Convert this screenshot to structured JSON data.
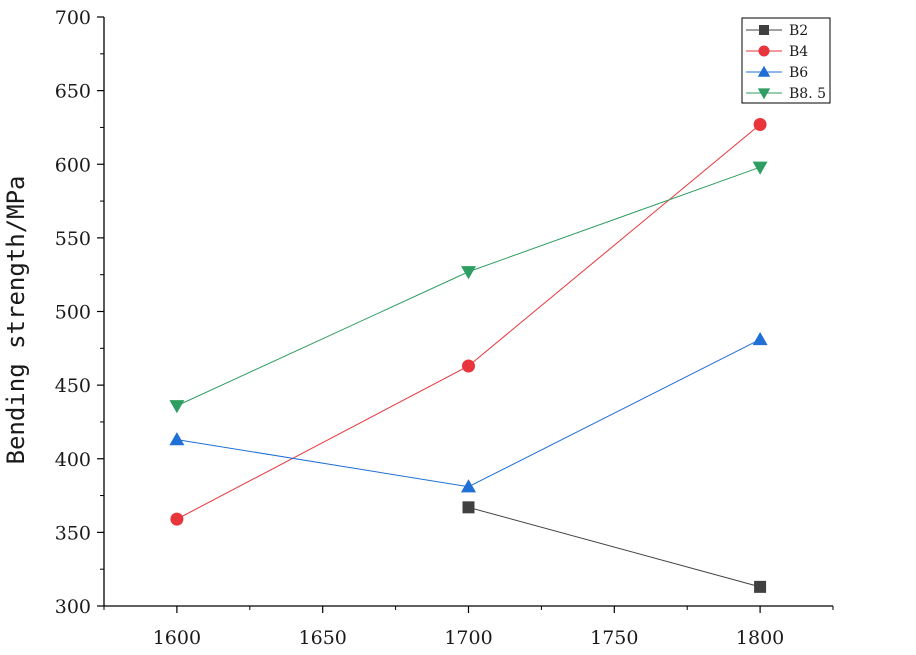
{
  "chart_data": {
    "type": "line",
    "title": "",
    "xlabel": "",
    "ylabel": "Bending strength/MPa",
    "xlim": [
      1575,
      1825
    ],
    "ylim": [
      300,
      700
    ],
    "xticks": [
      1600,
      1650,
      1700,
      1750,
      1800
    ],
    "yticks": [
      300,
      350,
      400,
      450,
      500,
      550,
      600,
      650,
      700
    ],
    "grid": false,
    "legend_position": "top-right",
    "series": [
      {
        "name": "B2",
        "color": "#404040",
        "marker": "square",
        "x": [
          1700,
          1800
        ],
        "y": [
          367,
          313
        ]
      },
      {
        "name": "B4",
        "color": "#e8353b",
        "marker": "circle",
        "x": [
          1600,
          1700,
          1800
        ],
        "y": [
          359,
          463,
          627
        ]
      },
      {
        "name": "B6",
        "color": "#1f6fd6",
        "marker": "triangle-up",
        "x": [
          1600,
          1700,
          1800
        ],
        "y": [
          413,
          381,
          481
        ]
      },
      {
        "name": "B8. 5",
        "color": "#2f9e62",
        "marker": "triangle-down",
        "x": [
          1600,
          1700,
          1800
        ],
        "y": [
          436,
          527,
          598
        ]
      }
    ]
  }
}
